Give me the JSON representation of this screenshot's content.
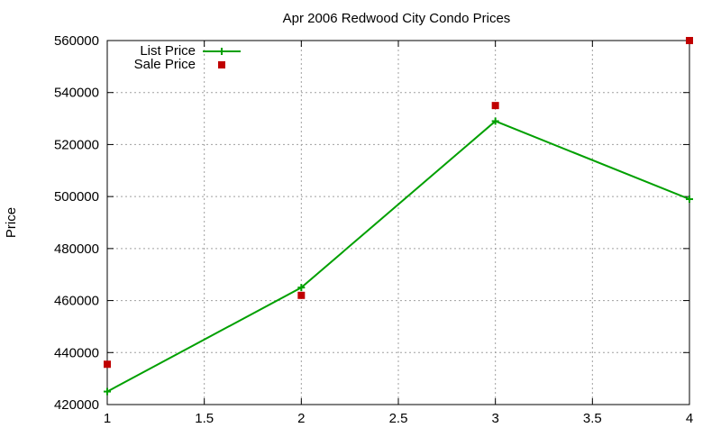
{
  "chart_data": {
    "type": "line",
    "title": "Apr 2006 Redwood City Condo Prices",
    "xlabel": "",
    "ylabel": "Price",
    "xlim": [
      1,
      4
    ],
    "ylim": [
      420000,
      560000
    ],
    "x_ticks": [
      1,
      1.5,
      2,
      2.5,
      3,
      3.5,
      4
    ],
    "x_tick_labels": [
      "1",
      "1.5",
      "2",
      "2.5",
      "3",
      "3.5",
      "4"
    ],
    "y_ticks": [
      420000,
      440000,
      460000,
      480000,
      500000,
      520000,
      540000,
      560000
    ],
    "y_tick_labels": [
      "420000",
      "440000",
      "460000",
      "480000",
      "500000",
      "520000",
      "540000",
      "560000"
    ],
    "grid": true,
    "legend_position": "top-left",
    "series": [
      {
        "name": "List Price",
        "style": "line-with-plus-markers",
        "color": "#00a000",
        "x": [
          1,
          2,
          3,
          4
        ],
        "y": [
          425000,
          465000,
          529000,
          499000
        ]
      },
      {
        "name": "Sale Price",
        "style": "square-markers",
        "color": "#c00000",
        "x": [
          1,
          2,
          3,
          4
        ],
        "y": [
          435500,
          462000,
          535000,
          560000
        ]
      }
    ]
  }
}
